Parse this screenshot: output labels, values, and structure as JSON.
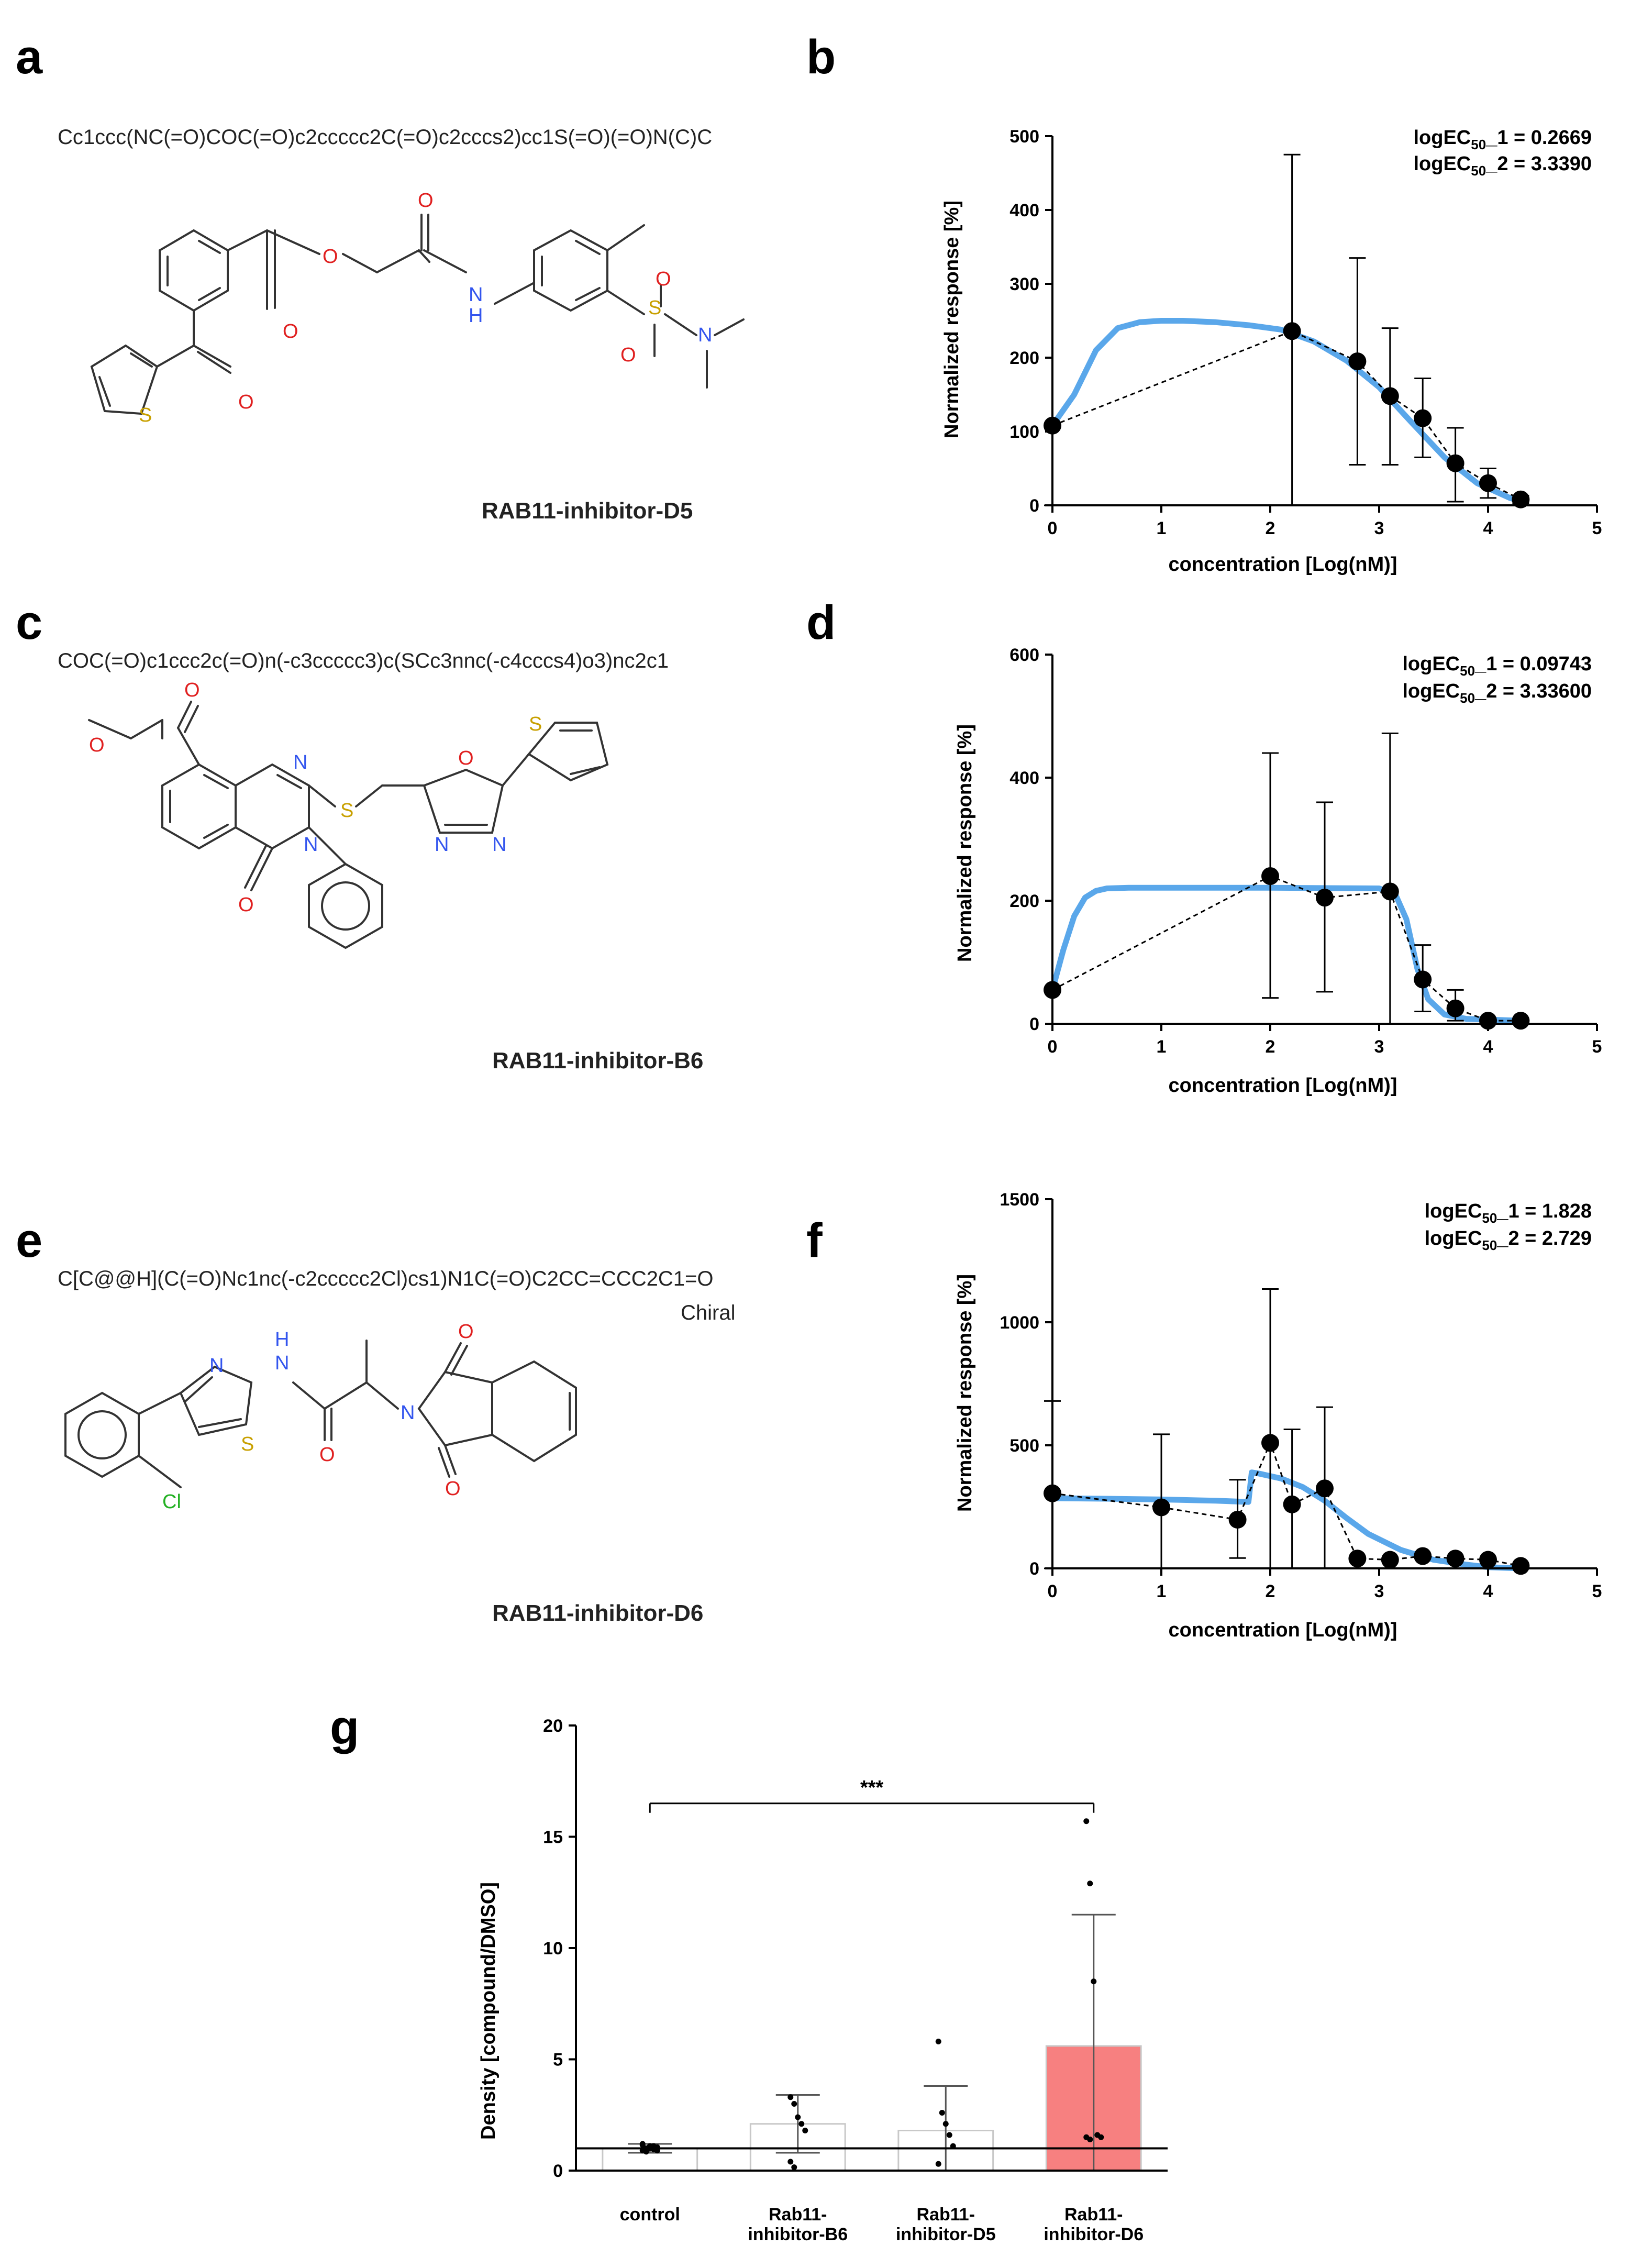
{
  "panels": {
    "a": "a",
    "b": "b",
    "c": "c",
    "d": "d",
    "e": "e",
    "f": "f",
    "g": "g"
  },
  "compounds": [
    {
      "smiles": "Cc1ccc(NC(=O)COC(=O)c2ccccc2C(=O)c2cccs2)cc1S(=O)(=O)N(C)C",
      "name": "RAB11-inhibitor-D5"
    },
    {
      "smiles": "COC(=O)c1ccc2c(=O)n(-c3ccccc3)c(SCc3nnc(-c4cccs4)o3)nc2c1",
      "name": "RAB11-inhibitor-B6"
    },
    {
      "smiles": "C[C@@H](C(=O)Nc1nc(-c2ccccc2Cl)cs1)N1C(=O)C2CC=CCC2C1=O",
      "name": "RAB11-inhibitor-D6",
      "stereo_label": "Chiral"
    }
  ],
  "atom_labels": {
    "O": "O",
    "N": "N",
    "S": "S",
    "Cl": "Cl",
    "H": "H"
  },
  "chart_data": [
    {
      "panel": "b",
      "type": "scatter",
      "xlabel": "concentration [Log(nM)]",
      "ylabel": "Normalized response [%]",
      "xlim": [
        0,
        5
      ],
      "ylim": [
        0,
        500
      ],
      "xticks": [
        "0",
        "1",
        "2",
        "3",
        "4",
        "5"
      ],
      "yticks": [
        "0",
        "100",
        "200",
        "300",
        "400",
        "500"
      ],
      "annotations": [
        {
          "pre": "logEC",
          "sub": "50",
          "post": "_1 = 0.2669"
        },
        {
          "pre": "logEC",
          "sub": "50",
          "post": "_2 = 3.3390"
        }
      ],
      "points": [
        {
          "x": 0,
          "y": 108,
          "lo": 0,
          "hi": 110
        },
        {
          "x": 2.2,
          "y": 236,
          "lo": 0,
          "hi": 475
        },
        {
          "x": 2.8,
          "y": 195,
          "lo": 55,
          "hi": 335
        },
        {
          "x": 3.1,
          "y": 148,
          "lo": 55,
          "hi": 240
        },
        {
          "x": 3.4,
          "y": 118,
          "lo": 65,
          "hi": 172
        },
        {
          "x": 3.7,
          "y": 57,
          "lo": 5,
          "hi": 105
        },
        {
          "x": 4.0,
          "y": 30,
          "lo": 10,
          "hi": 50
        },
        {
          "x": 4.3,
          "y": 8,
          "lo": 3,
          "hi": 13
        }
      ],
      "fit": {
        "color": "#5aa7ea",
        "x": [
          0,
          0.2,
          0.4,
          0.6,
          0.8,
          1.0,
          1.2,
          1.5,
          1.8,
          2.1,
          2.4,
          2.7,
          3.0,
          3.3,
          3.6,
          3.9,
          4.2,
          4.3
        ],
        "y": [
          108,
          150,
          210,
          240,
          248,
          250,
          250,
          248,
          244,
          238,
          222,
          196,
          160,
          112,
          65,
          30,
          10,
          6
        ]
      }
    },
    {
      "panel": "d",
      "type": "scatter",
      "xlabel": "concentration [Log(nM)]",
      "ylabel": "Normalized response [%]",
      "xlim": [
        0,
        5
      ],
      "ylim": [
        0,
        600
      ],
      "xticks": [
        "0",
        "1",
        "2",
        "3",
        "4",
        "5"
      ],
      "yticks": [
        "0",
        "200",
        "400",
        "600"
      ],
      "annotations": [
        {
          "pre": "logEC",
          "sub": "50",
          "post": "_1 = 0.09743"
        },
        {
          "pre": "logEC",
          "sub": "50",
          "post": "_2 = 3.33600"
        }
      ],
      "points": [
        {
          "x": 0,
          "y": 55,
          "lo": 55,
          "hi": 55
        },
        {
          "x": 2.0,
          "y": 240,
          "lo": 42,
          "hi": 440
        },
        {
          "x": 2.5,
          "y": 205,
          "lo": 52,
          "hi": 360
        },
        {
          "x": 3.1,
          "y": 215,
          "lo": 0,
          "hi": 472
        },
        {
          "x": 3.4,
          "y": 72,
          "lo": 20,
          "hi": 128
        },
        {
          "x": 3.7,
          "y": 25,
          "lo": 5,
          "hi": 55
        },
        {
          "x": 4.0,
          "y": 5,
          "lo": 2,
          "hi": 8
        },
        {
          "x": 4.3,
          "y": 5,
          "lo": 2,
          "hi": 8
        }
      ],
      "fit": {
        "color": "#5aa7ea",
        "x": [
          0,
          0.1,
          0.2,
          0.3,
          0.4,
          0.5,
          0.7,
          1.0,
          2.0,
          3.0,
          3.15,
          3.25,
          3.35,
          3.45,
          3.6,
          3.8,
          4.3
        ],
        "y": [
          55,
          120,
          175,
          205,
          216,
          220,
          221,
          221,
          221,
          220,
          210,
          170,
          90,
          40,
          15,
          8,
          5
        ]
      }
    },
    {
      "panel": "f",
      "type": "scatter",
      "xlabel": "concentration [Log(nM)]",
      "ylabel": "Normalized response [%]",
      "xlim": [
        0,
        5
      ],
      "ylim": [
        0,
        1500
      ],
      "xticks": [
        "0",
        "1",
        "2",
        "3",
        "4",
        "5"
      ],
      "yticks": [
        "0",
        "500",
        "1000",
        "1500"
      ],
      "annotations": [
        {
          "pre": "logEC",
          "sub": "50",
          "post": "_1 = 1.828"
        },
        {
          "pre": "logEC",
          "sub": "50",
          "post": "_2 = 2.729"
        }
      ],
      "points": [
        {
          "x": 0,
          "y": 305,
          "lo": 0,
          "hi": 680
        },
        {
          "x": 1.0,
          "y": 248,
          "lo": 0,
          "hi": 545
        },
        {
          "x": 1.7,
          "y": 198,
          "lo": 42,
          "hi": 360
        },
        {
          "x": 2.0,
          "y": 510,
          "lo": 0,
          "hi": 1135
        },
        {
          "x": 2.2,
          "y": 260,
          "lo": 0,
          "hi": 565
        },
        {
          "x": 2.5,
          "y": 325,
          "lo": 0,
          "hi": 655
        },
        {
          "x": 2.8,
          "y": 40,
          "lo": 40,
          "hi": 40
        },
        {
          "x": 3.1,
          "y": 35,
          "lo": 35,
          "hi": 35
        },
        {
          "x": 3.4,
          "y": 50,
          "lo": 50,
          "hi": 50
        },
        {
          "x": 3.7,
          "y": 40,
          "lo": 40,
          "hi": 40
        },
        {
          "x": 4.0,
          "y": 35,
          "lo": 35,
          "hi": 35
        },
        {
          "x": 4.3,
          "y": 10,
          "lo": 10,
          "hi": 10
        }
      ],
      "fit": {
        "color": "#5aa7ea",
        "x": [
          0,
          0.5,
          1.0,
          1.5,
          1.8,
          1.83,
          1.9,
          2.1,
          2.3,
          2.5,
          2.7,
          2.9,
          3.2,
          3.5,
          3.8,
          4.0,
          4.3
        ],
        "y": [
          285,
          283,
          280,
          275,
          270,
          390,
          385,
          365,
          330,
          275,
          205,
          140,
          75,
          35,
          15,
          5,
          0
        ]
      }
    },
    {
      "panel": "g",
      "type": "bar",
      "ylabel": "Density [compound/DMSO]",
      "ylim": [
        0,
        20
      ],
      "yticks": [
        "0",
        "5",
        "10",
        "15",
        "20"
      ],
      "categories": [
        [
          "control"
        ],
        [
          "Rab11-",
          "inhibitor-B6"
        ],
        [
          "Rab11-",
          "inhibitor-D5"
        ],
        [
          "Rab11-",
          "inhibitor-D6"
        ]
      ],
      "values": [
        1.0,
        2.1,
        1.8,
        5.6
      ],
      "errors": [
        0.2,
        1.3,
        2.0,
        5.9
      ],
      "colors": [
        "#ffffff",
        "#ffffff",
        "#ffffff",
        "#f78080"
      ],
      "reference_line": 1.0,
      "significance": {
        "from": 0,
        "to": 3,
        "label": "***",
        "y": 16.5
      },
      "dots": [
        [
          0.9,
          1.0,
          1.1,
          0.95,
          1.05,
          1.2,
          0.85,
          1.0,
          1.1,
          0.9,
          1.15,
          1.0
        ],
        [
          3.3,
          3.0,
          2.4,
          2.1,
          1.8,
          0.4,
          0.15
        ],
        [
          5.8,
          2.6,
          2.1,
          1.6,
          1.1,
          0.3
        ],
        [
          15.7,
          12.9,
          8.5,
          1.6,
          1.5,
          1.5,
          1.4
        ]
      ]
    }
  ]
}
